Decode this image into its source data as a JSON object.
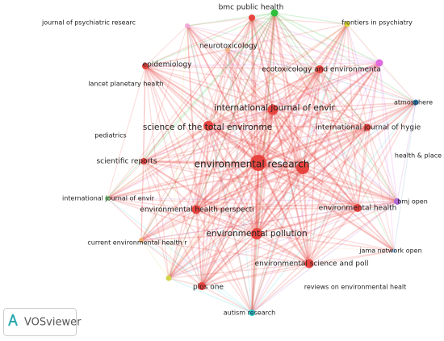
{
  "logo": "VOSviewer",
  "nodes": [
    {
      "label": "bmc public health"
    },
    {
      "label": "journal of psychiatric researc"
    },
    {
      "label": "frontiers in psychiatry"
    },
    {
      "label": "neurotoxicology"
    },
    {
      "label": "epidemiology"
    },
    {
      "label": "ecotoxicology and environmenta"
    },
    {
      "label": "lancet planetary health"
    },
    {
      "label": "atmosphere"
    },
    {
      "label": "international journal of envir"
    },
    {
      "label": "science of the total environme"
    },
    {
      "label": "international journal of hygie"
    },
    {
      "label": "pediatrics"
    },
    {
      "label": "health & place"
    },
    {
      "label": "scientific reports"
    },
    {
      "label": "environmental research"
    },
    {
      "label": "international journal of envir"
    },
    {
      "label": "environmental health perspecti"
    },
    {
      "label": "environmental health"
    },
    {
      "label": "bmj open"
    },
    {
      "label": "environmental pollution"
    },
    {
      "label": "current environmental health r"
    },
    {
      "label": "jama network open"
    },
    {
      "label": "environmental science and poll"
    },
    {
      "label": "plos one"
    },
    {
      "label": "reviews on environmental healt"
    },
    {
      "label": "autism research"
    }
  ]
}
